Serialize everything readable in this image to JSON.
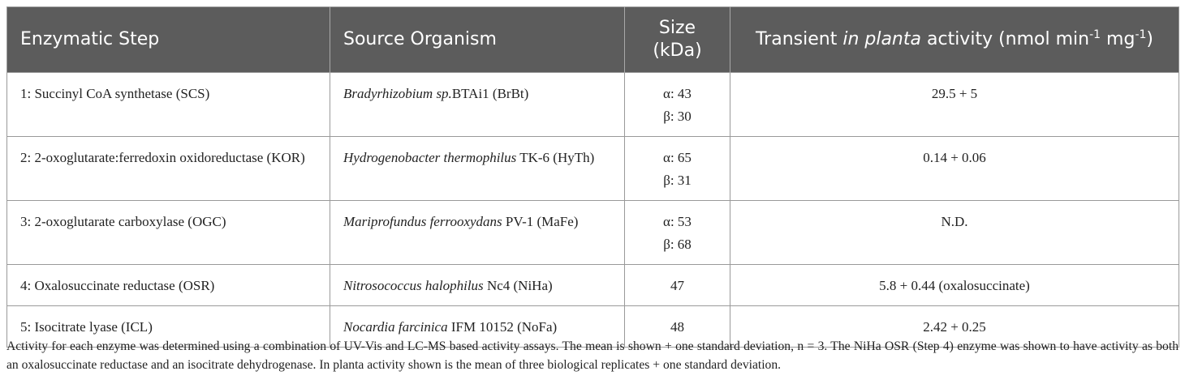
{
  "table": {
    "headers": {
      "step": "Enzymatic Step",
      "organism": "Source Organism",
      "size_line1": "Size",
      "size_line2": "(kDa)",
      "activity_prefix": "Transient ",
      "activity_italic": "in planta",
      "activity_mid": " activity (nmol min",
      "activity_sup1": "-1",
      "activity_mid2": " mg",
      "activity_sup2": "-1",
      "activity_suffix": ")"
    },
    "rows": [
      {
        "step": "1: Succinyl CoA synthetase (SCS)",
        "organism_italic": "Bradyrhizobium sp.",
        "organism_rest": "BTAi1 (BrBt)",
        "size": [
          "α: 43",
          "β: 30"
        ],
        "activity": "29.5 + 5"
      },
      {
        "step": "2: 2-oxoglutarate:ferredoxin oxidoreductase (KOR)",
        "organism_italic": "Hydrogenobacter thermophilus",
        "organism_rest": " TK-6 (HyTh)",
        "size": [
          "α: 65",
          "β: 31"
        ],
        "activity": "0.14 + 0.06"
      },
      {
        "step": "3: 2-oxoglutarate carboxylase (OGC)",
        "organism_italic": "Mariprofundus ferrooxydans",
        "organism_rest": " PV-1 (MaFe)",
        "size": [
          "α: 53",
          "β: 68"
        ],
        "activity": "N.D."
      },
      {
        "step": "4: Oxalosuccinate reductase (OSR)",
        "organism_italic": "Nitrosococcus halophilus",
        "organism_rest": " Nc4 (NiHa)",
        "size": [
          "47"
        ],
        "activity": "5.8 + 0.44 (oxalosuccinate)"
      },
      {
        "step": "5: Isocitrate lyase (ICL)",
        "organism_italic": "Nocardia farcinica",
        "organism_rest": " IFM 10152 (NoFa)",
        "size": [
          "48"
        ],
        "activity": "2.42 + 0.25"
      }
    ]
  },
  "caption": "Activity for each enzyme was determined using a combination of UV-Vis and LC-MS based activity assays. The mean is shown + one standard deviation, n = 3. The NiHa OSR (Step 4) enzyme was shown to have activity as both an oxalosuccinate reductase and an isocitrate dehydrogenase. In planta activity shown is the mean of three biological replicates + one standard deviation."
}
